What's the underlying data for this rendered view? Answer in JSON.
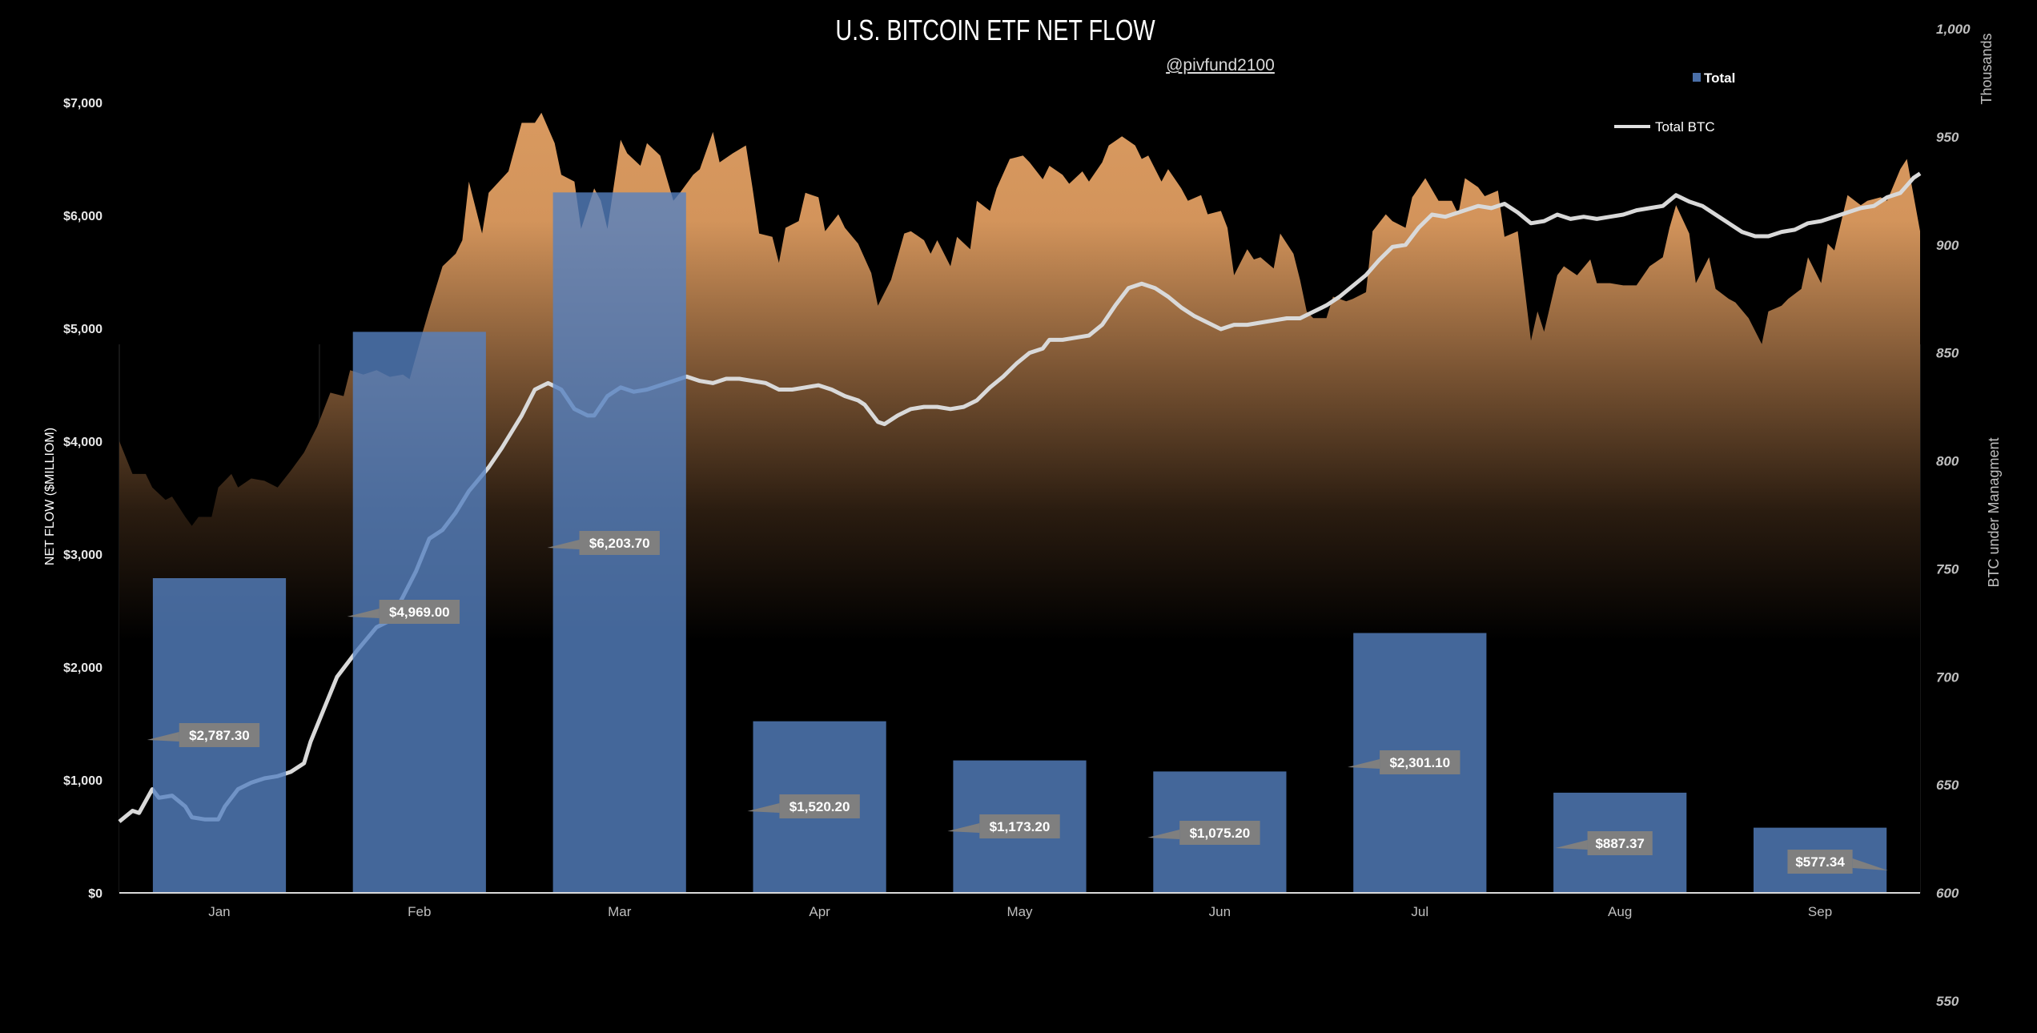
{
  "chart_data": {
    "type": "bar+line+area",
    "title": "U.S. BITCOIN ETF NET FLOW",
    "subtitle": "@pivfund2100",
    "ylabel": "NET FLOW ($MILLIOM)",
    "y2label": "BTC under Managment",
    "y2unit": "Thousands",
    "ylim": [
      0,
      7000
    ],
    "y2lim": [
      550,
      1000
    ],
    "yticks": [
      "$0",
      "$1,000",
      "$2,000",
      "$3,000",
      "$4,000",
      "$5,000",
      "$6,000",
      "$7,000"
    ],
    "y2ticks": [
      "550",
      "600",
      "650",
      "700",
      "750",
      "800",
      "850",
      "900",
      "950",
      "1,000"
    ],
    "categories": [
      "Jan",
      "Feb",
      "Mar",
      "Apr",
      "May",
      "Jun",
      "Jul",
      "Aug",
      "Sep"
    ],
    "legend": {
      "position": "top-right",
      "entries": [
        "Total",
        "Total BTC"
      ]
    },
    "grid": false,
    "colors": {
      "bar": "#5581c0",
      "line": "#d9d9d9",
      "area_top": "#d99a60",
      "label_box": "#7f7f7f",
      "background": "#000000"
    },
    "bars": {
      "name": "Total",
      "values": [
        2787.3,
        4969.0,
        6203.7,
        1520.2,
        1173.2,
        1075.2,
        2301.1,
        887.37,
        577.34
      ],
      "labels": [
        "$2,787.30",
        "$4,969.00",
        "$6,203.70",
        "$1,520.20",
        "$1,173.20",
        "$1,075.20",
        "$2,301.10",
        "$887.37",
        "$577.34"
      ]
    },
    "line": {
      "name": "Total BTC",
      "axis": "right",
      "points": [
        [
          "01-01",
          633
        ],
        [
          "01-03",
          638
        ],
        [
          "01-04",
          637
        ],
        [
          "01-06",
          648
        ],
        [
          "01-07",
          644
        ],
        [
          "01-09",
          645
        ],
        [
          "01-11",
          640
        ],
        [
          "01-12",
          635
        ],
        [
          "01-14",
          634
        ],
        [
          "01-16",
          634
        ],
        [
          "01-17",
          640
        ],
        [
          "01-19",
          648
        ],
        [
          "01-21",
          651
        ],
        [
          "01-23",
          653
        ],
        [
          "01-25",
          654
        ],
        [
          "01-27",
          656
        ],
        [
          "01-29",
          660
        ],
        [
          "01-30",
          670
        ],
        [
          "02-01",
          685
        ],
        [
          "02-03",
          700
        ],
        [
          "02-06",
          712
        ],
        [
          "02-09",
          723
        ],
        [
          "02-11",
          726
        ],
        [
          "02-13",
          737
        ],
        [
          "02-15",
          749
        ],
        [
          "02-17",
          764
        ],
        [
          "02-19",
          768
        ],
        [
          "02-21",
          776
        ],
        [
          "02-23",
          786
        ],
        [
          "02-26",
          797
        ],
        [
          "02-28",
          806
        ],
        [
          "03-02",
          821
        ],
        [
          "03-04",
          833
        ],
        [
          "03-06",
          836
        ],
        [
          "03-08",
          833
        ],
        [
          "03-10",
          824
        ],
        [
          "03-12",
          821
        ],
        [
          "03-13",
          821
        ],
        [
          "03-15",
          830
        ],
        [
          "03-17",
          834
        ],
        [
          "03-19",
          832
        ],
        [
          "03-21",
          833
        ],
        [
          "03-23",
          835
        ],
        [
          "03-25",
          837
        ],
        [
          "03-27",
          839
        ],
        [
          "03-29",
          837
        ],
        [
          "03-31",
          836
        ],
        [
          "04-02",
          838
        ],
        [
          "04-04",
          838
        ],
        [
          "04-06",
          837
        ],
        [
          "04-08",
          836
        ],
        [
          "04-10",
          833
        ],
        [
          "04-12",
          833
        ],
        [
          "04-14",
          834
        ],
        [
          "04-16",
          835
        ],
        [
          "04-18",
          833
        ],
        [
          "04-20",
          830
        ],
        [
          "04-22",
          828
        ],
        [
          "04-23",
          826
        ],
        [
          "04-25",
          818
        ],
        [
          "04-26",
          817
        ],
        [
          "04-28",
          821
        ],
        [
          "04-30",
          824
        ],
        [
          "05-02",
          825
        ],
        [
          "05-04",
          825
        ],
        [
          "05-06",
          824
        ],
        [
          "05-08",
          825
        ],
        [
          "05-10",
          828
        ],
        [
          "05-12",
          834
        ],
        [
          "05-14",
          839
        ],
        [
          "05-16",
          845
        ],
        [
          "05-18",
          850
        ],
        [
          "05-20",
          852
        ],
        [
          "05-21",
          856
        ],
        [
          "05-23",
          856
        ],
        [
          "05-25",
          857
        ],
        [
          "05-27",
          858
        ],
        [
          "05-29",
          863
        ],
        [
          "05-31",
          872
        ],
        [
          "06-02",
          880
        ],
        [
          "06-04",
          882
        ],
        [
          "06-06",
          880
        ],
        [
          "06-08",
          876
        ],
        [
          "06-10",
          871
        ],
        [
          "06-12",
          867
        ],
        [
          "06-14",
          864
        ],
        [
          "06-16",
          861
        ],
        [
          "06-18",
          863
        ],
        [
          "06-20",
          863
        ],
        [
          "06-22",
          864
        ],
        [
          "06-24",
          865
        ],
        [
          "06-26",
          866
        ],
        [
          "06-28",
          866
        ],
        [
          "06-30",
          869
        ],
        [
          "07-02",
          872
        ],
        [
          "07-04",
          876
        ],
        [
          "07-06",
          881
        ],
        [
          "07-08",
          886
        ],
        [
          "07-10",
          893
        ],
        [
          "07-12",
          899
        ],
        [
          "07-14",
          900
        ],
        [
          "07-16",
          908
        ],
        [
          "07-18",
          914
        ],
        [
          "07-20",
          913
        ],
        [
          "07-21",
          914
        ],
        [
          "07-23",
          916
        ],
        [
          "07-25",
          918
        ],
        [
          "07-27",
          917
        ],
        [
          "07-29",
          919
        ],
        [
          "07-31",
          915
        ],
        [
          "08-02",
          910
        ],
        [
          "08-04",
          911
        ],
        [
          "08-06",
          914
        ],
        [
          "08-08",
          912
        ],
        [
          "08-10",
          913
        ],
        [
          "08-12",
          912
        ],
        [
          "08-14",
          913
        ],
        [
          "08-16",
          914
        ],
        [
          "08-18",
          916
        ],
        [
          "08-20",
          917
        ],
        [
          "08-22",
          918
        ],
        [
          "08-24",
          923
        ],
        [
          "08-26",
          920
        ],
        [
          "08-28",
          918
        ],
        [
          "08-30",
          914
        ],
        [
          "09-01",
          910
        ],
        [
          "09-03",
          906
        ],
        [
          "09-05",
          904
        ],
        [
          "09-07",
          904
        ],
        [
          "09-09",
          906
        ],
        [
          "09-11",
          907
        ],
        [
          "09-13",
          910
        ],
        [
          "09-15",
          911
        ],
        [
          "09-17",
          913
        ],
        [
          "09-19",
          915
        ],
        [
          "09-21",
          917
        ],
        [
          "09-23",
          918
        ],
        [
          "09-25",
          922
        ],
        [
          "09-27",
          924
        ],
        [
          "09-29",
          931
        ],
        [
          "09-30",
          933
        ]
      ]
    },
    "area": {
      "axis": "left",
      "points": [
        [
          "01-01",
          4000
        ],
        [
          "01-03",
          3710
        ],
        [
          "01-05",
          3710
        ],
        [
          "01-06",
          3590
        ],
        [
          "01-08",
          3480
        ],
        [
          "01-09",
          3510
        ],
        [
          "01-11",
          3330
        ],
        [
          "01-12",
          3250
        ],
        [
          "01-13",
          3330
        ],
        [
          "01-15",
          3330
        ],
        [
          "01-16",
          3590
        ],
        [
          "01-18",
          3710
        ],
        [
          "01-19",
          3590
        ],
        [
          "01-21",
          3670
        ],
        [
          "01-23",
          3650
        ],
        [
          "01-25",
          3590
        ],
        [
          "01-27",
          3740
        ],
        [
          "01-29",
          3900
        ],
        [
          "01-31",
          4130
        ],
        [
          "02-02",
          4430
        ],
        [
          "02-04",
          4400
        ],
        [
          "02-05",
          4630
        ],
        [
          "02-07",
          4590
        ],
        [
          "02-09",
          4630
        ],
        [
          "02-11",
          4570
        ],
        [
          "02-13",
          4590
        ],
        [
          "02-14",
          4550
        ],
        [
          "02-16",
          4970
        ],
        [
          "02-17",
          5170
        ],
        [
          "02-19",
          5550
        ],
        [
          "02-21",
          5660
        ],
        [
          "02-22",
          5780
        ],
        [
          "02-23",
          6300
        ],
        [
          "02-25",
          5840
        ],
        [
          "02-26",
          6200
        ],
        [
          "02-29",
          6390
        ],
        [
          "03-02",
          6820
        ],
        [
          "03-04",
          6820
        ],
        [
          "03-05",
          6910
        ],
        [
          "03-07",
          6640
        ],
        [
          "03-08",
          6360
        ],
        [
          "03-10",
          6300
        ],
        [
          "03-11",
          5880
        ],
        [
          "03-13",
          6240
        ],
        [
          "03-14",
          6130
        ],
        [
          "03-15",
          5880
        ],
        [
          "03-17",
          6670
        ],
        [
          "03-18",
          6550
        ],
        [
          "03-20",
          6440
        ],
        [
          "03-21",
          6640
        ],
        [
          "03-23",
          6530
        ],
        [
          "03-25",
          6130
        ],
        [
          "03-26",
          6200
        ],
        [
          "03-28",
          6360
        ],
        [
          "03-29",
          6410
        ],
        [
          "03-31",
          6740
        ],
        [
          "04-01",
          6470
        ],
        [
          "04-03",
          6550
        ],
        [
          "04-05",
          6620
        ],
        [
          "04-06",
          6240
        ],
        [
          "04-07",
          5840
        ],
        [
          "04-09",
          5810
        ],
        [
          "04-10",
          5580
        ],
        [
          "04-11",
          5890
        ],
        [
          "04-13",
          5950
        ],
        [
          "04-14",
          6200
        ],
        [
          "04-16",
          6160
        ],
        [
          "04-17",
          5860
        ],
        [
          "04-19",
          6010
        ],
        [
          "04-20",
          5890
        ],
        [
          "04-22",
          5750
        ],
        [
          "04-24",
          5490
        ],
        [
          "04-25",
          5200
        ],
        [
          "04-27",
          5430
        ],
        [
          "04-29",
          5840
        ],
        [
          "04-30",
          5860
        ],
        [
          "05-02",
          5780
        ],
        [
          "05-03",
          5660
        ],
        [
          "05-04",
          5780
        ],
        [
          "05-06",
          5550
        ],
        [
          "05-07",
          5810
        ],
        [
          "05-09",
          5700
        ],
        [
          "05-10",
          6130
        ],
        [
          "05-12",
          6040
        ],
        [
          "05-13",
          6240
        ],
        [
          "05-15",
          6500
        ],
        [
          "05-17",
          6530
        ],
        [
          "05-18",
          6470
        ],
        [
          "05-20",
          6320
        ],
        [
          "05-21",
          6440
        ],
        [
          "05-23",
          6360
        ],
        [
          "05-24",
          6280
        ],
        [
          "05-26",
          6390
        ],
        [
          "05-27",
          6300
        ],
        [
          "05-29",
          6470
        ],
        [
          "05-30",
          6620
        ],
        [
          "06-01",
          6700
        ],
        [
          "06-03",
          6620
        ],
        [
          "06-04",
          6500
        ],
        [
          "06-05",
          6530
        ],
        [
          "06-07",
          6300
        ],
        [
          "06-08",
          6410
        ],
        [
          "06-10",
          6240
        ],
        [
          "06-11",
          6130
        ],
        [
          "06-13",
          6180
        ],
        [
          "06-14",
          6010
        ],
        [
          "06-16",
          6040
        ],
        [
          "06-17",
          5890
        ],
        [
          "06-18",
          5470
        ],
        [
          "06-20",
          5700
        ],
        [
          "06-21",
          5610
        ],
        [
          "06-22",
          5630
        ],
        [
          "06-24",
          5530
        ],
        [
          "06-25",
          5840
        ],
        [
          "06-27",
          5660
        ],
        [
          "06-28",
          5430
        ],
        [
          "06-29",
          5150
        ],
        [
          "06-30",
          5090
        ],
        [
          "07-02",
          5090
        ],
        [
          "07-03",
          5280
        ],
        [
          "07-05",
          5240
        ],
        [
          "07-06",
          5260
        ],
        [
          "07-08",
          5320
        ],
        [
          "07-09",
          5860
        ],
        [
          "07-11",
          6010
        ],
        [
          "07-12",
          5950
        ],
        [
          "07-14",
          5890
        ],
        [
          "07-15",
          6160
        ],
        [
          "07-17",
          6330
        ],
        [
          "07-19",
          6130
        ],
        [
          "07-21",
          6130
        ],
        [
          "07-22",
          6010
        ],
        [
          "07-23",
          6330
        ],
        [
          "07-25",
          6250
        ],
        [
          "07-26",
          6170
        ],
        [
          "07-28",
          6220
        ],
        [
          "07-29",
          5810
        ],
        [
          "07-31",
          5860
        ],
        [
          "08-02",
          4890
        ],
        [
          "08-03",
          5150
        ],
        [
          "08-04",
          4970
        ],
        [
          "08-06",
          5470
        ],
        [
          "08-07",
          5550
        ],
        [
          "08-09",
          5470
        ],
        [
          "08-11",
          5610
        ],
        [
          "08-12",
          5400
        ],
        [
          "08-14",
          5400
        ],
        [
          "08-16",
          5380
        ],
        [
          "08-18",
          5380
        ],
        [
          "08-20",
          5550
        ],
        [
          "08-22",
          5630
        ],
        [
          "08-23",
          5890
        ],
        [
          "08-24",
          6090
        ],
        [
          "08-26",
          5840
        ],
        [
          "08-27",
          5400
        ],
        [
          "08-29",
          5630
        ],
        [
          "08-30",
          5350
        ],
        [
          "09-01",
          5260
        ],
        [
          "09-02",
          5230
        ],
        [
          "09-04",
          5090
        ],
        [
          "09-06",
          4860
        ],
        [
          "09-07",
          5150
        ],
        [
          "09-09",
          5200
        ],
        [
          "09-10",
          5260
        ],
        [
          "09-12",
          5350
        ],
        [
          "09-13",
          5630
        ],
        [
          "09-15",
          5400
        ],
        [
          "09-16",
          5750
        ],
        [
          "09-17",
          5690
        ],
        [
          "09-19",
          6180
        ],
        [
          "09-21",
          6090
        ],
        [
          "09-22",
          6130
        ],
        [
          "09-24",
          6160
        ],
        [
          "09-25",
          6130
        ],
        [
          "09-27",
          6410
        ],
        [
          "09-28",
          6500
        ],
        [
          "09-30",
          5860
        ]
      ]
    }
  }
}
